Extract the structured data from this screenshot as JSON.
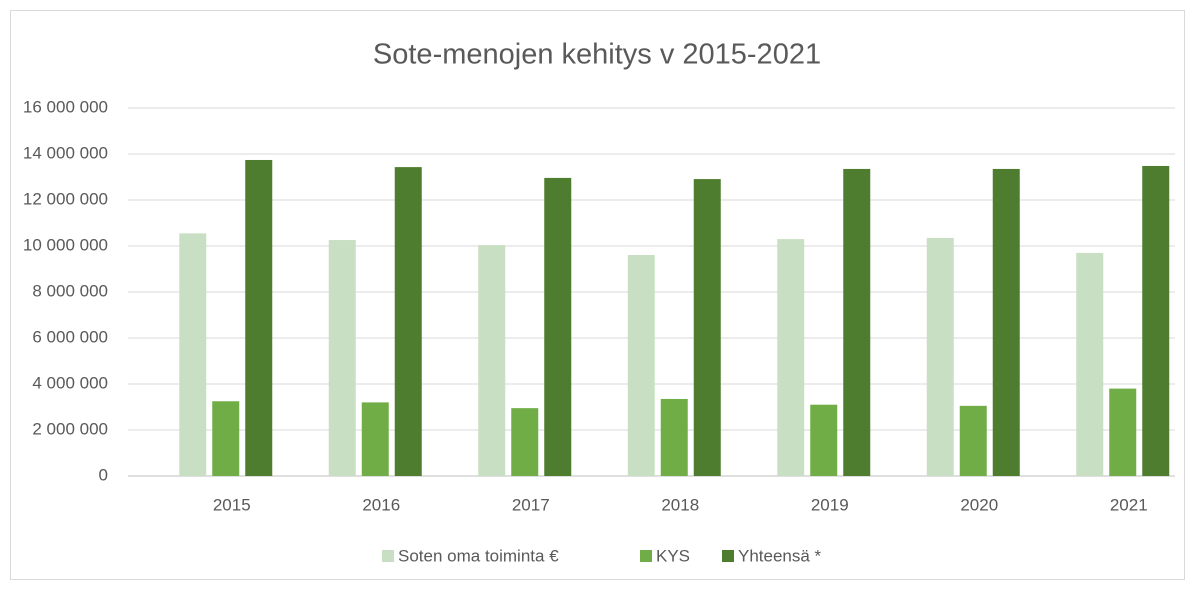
{
  "chart_data": {
    "type": "bar",
    "title": "Sote-menojen kehitys v 2015-2021",
    "categories": [
      "2015",
      "2016",
      "2017",
      "2018",
      "2019",
      "2020",
      "2021"
    ],
    "series": [
      {
        "name": "Soten oma toiminta €",
        "color": "#c9dfc4",
        "values": [
          10550000,
          10260000,
          10040000,
          9610000,
          10300000,
          10350000,
          9700000
        ]
      },
      {
        "name": "KYS",
        "color": "#70ad47",
        "values": [
          3250000,
          3200000,
          2950000,
          3350000,
          3100000,
          3050000,
          3800000
        ]
      },
      {
        "name": "Yhteensä *",
        "color": "#4e7d2f",
        "values": [
          13740000,
          13430000,
          12960000,
          12910000,
          13350000,
          13350000,
          13480000
        ]
      }
    ],
    "ylim": [
      0,
      16000000
    ],
    "yticks": [
      0,
      {
        "value": 2000000,
        "label": "2 000 000"
      },
      {
        "value": 4000000,
        "label": "4 000 000"
      },
      {
        "value": 6000000,
        "label": "6 000 000"
      },
      {
        "value": 8000000,
        "label": "8 000 000"
      },
      {
        "value": 10000000,
        "label": "10 000 000"
      },
      {
        "value": 12000000,
        "label": "12 000 000"
      },
      {
        "value": 14000000,
        "label": "14 000 000"
      },
      {
        "value": 16000000,
        "label": "16 000 000"
      }
    ],
    "grid": true,
    "legend": "bottom"
  }
}
